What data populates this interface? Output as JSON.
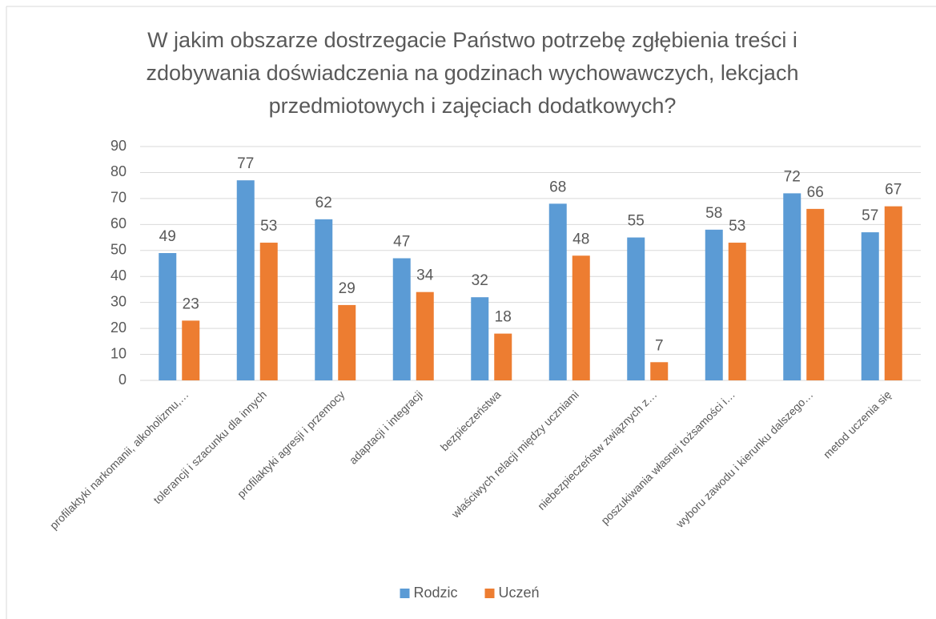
{
  "chart_data": {
    "type": "bar",
    "title": "W jakim obszarze dostrzegacie Państwo potrzebę zgłębienia treści i zdobywania doświadczenia na godzinach wychowawczych, lekcjach przedmiotowych i zajęciach dodatkowych?",
    "categories": [
      "profilaktyki narkomanii, alkoholizmu,…",
      "tolerancji i szacunku dla innych",
      "profilaktyki agresji i przemocy",
      "adaptacji i integracji",
      "bezpieczeństwa",
      "właściwych relacji między uczniami",
      "niebezpieczeństw związnych z…",
      "poszukiwania własnej tożsamości i…",
      "wyboru zawodu i kierunku dalszego…",
      "metod uczenia się"
    ],
    "series": [
      {
        "name": "Rodzic",
        "color": "#5b9bd5",
        "values": [
          49,
          77,
          62,
          47,
          32,
          68,
          55,
          58,
          72,
          57
        ]
      },
      {
        "name": "Uczeń",
        "color": "#ed7d31",
        "values": [
          23,
          53,
          29,
          34,
          18,
          48,
          7,
          53,
          66,
          67
        ]
      }
    ],
    "ylim": [
      0,
      90
    ],
    "yticks": [
      0,
      10,
      20,
      30,
      40,
      50,
      60,
      70,
      80,
      90
    ],
    "grid": true,
    "legend": "bottom"
  }
}
